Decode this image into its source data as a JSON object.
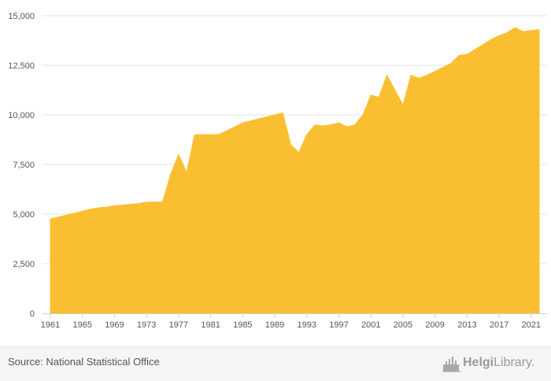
{
  "chart_data": {
    "type": "area",
    "title": "",
    "xlabel": "",
    "ylabel": "",
    "x": [
      1961,
      1962,
      1963,
      1964,
      1965,
      1966,
      1967,
      1968,
      1969,
      1970,
      1971,
      1972,
      1973,
      1974,
      1975,
      1976,
      1977,
      1978,
      1979,
      1980,
      1981,
      1982,
      1983,
      1984,
      1985,
      1986,
      1987,
      1988,
      1989,
      1990,
      1991,
      1992,
      1993,
      1994,
      1995,
      1996,
      1997,
      1998,
      1999,
      2000,
      2001,
      2002,
      2003,
      2004,
      2005,
      2006,
      2007,
      2008,
      2009,
      2010,
      2011,
      2012,
      2013,
      2014,
      2015,
      2016,
      2017,
      2018,
      2019,
      2020,
      2021,
      2022
    ],
    "series": [
      {
        "values": [
          4750,
          4850,
          4950,
          5050,
          5150,
          5250,
          5320,
          5350,
          5420,
          5450,
          5500,
          5530,
          5600,
          5610,
          5610,
          7000,
          8000,
          7100,
          9000,
          9010,
          9010,
          9020,
          9200,
          9400,
          9600,
          9700,
          9800,
          9900,
          10000,
          10100,
          8500,
          8100,
          9000,
          9500,
          9450,
          9500,
          9600,
          9400,
          9500,
          10000,
          11000,
          10900,
          12000,
          11250,
          10500,
          12000,
          11850,
          12000,
          12200,
          12400,
          12600,
          13000,
          13050,
          13300,
          13550,
          13800,
          14000,
          14150,
          14400,
          14200,
          14250,
          14300
        ]
      }
    ],
    "ylim": [
      0,
      15000
    ],
    "yticks": [
      0,
      2500,
      5000,
      7500,
      10000,
      12500,
      15000
    ],
    "ytick_labels": [
      "0",
      "2,500",
      "5,000",
      "7,500",
      "10,000",
      "12,500",
      "15,000"
    ],
    "xticks": [
      1961,
      1965,
      1969,
      1973,
      1977,
      1981,
      1985,
      1989,
      1993,
      1997,
      2001,
      2005,
      2009,
      2013,
      2017,
      2021
    ],
    "xtick_labels": [
      "1961",
      "1965",
      "1969",
      "1973",
      "1977",
      "1981",
      "1985",
      "1989",
      "1993",
      "1997",
      "2001",
      "2005",
      "2009",
      "2013",
      "2017",
      "2021"
    ],
    "grid": true,
    "legend": "none",
    "colors": {
      "area": "#f9bf30",
      "grid": "#e6e6e6",
      "axis": "#cfcfcf"
    }
  },
  "footer": {
    "source": "Source: National Statistical Office",
    "brand_bold": "Helgi",
    "brand_rest": "Library."
  }
}
